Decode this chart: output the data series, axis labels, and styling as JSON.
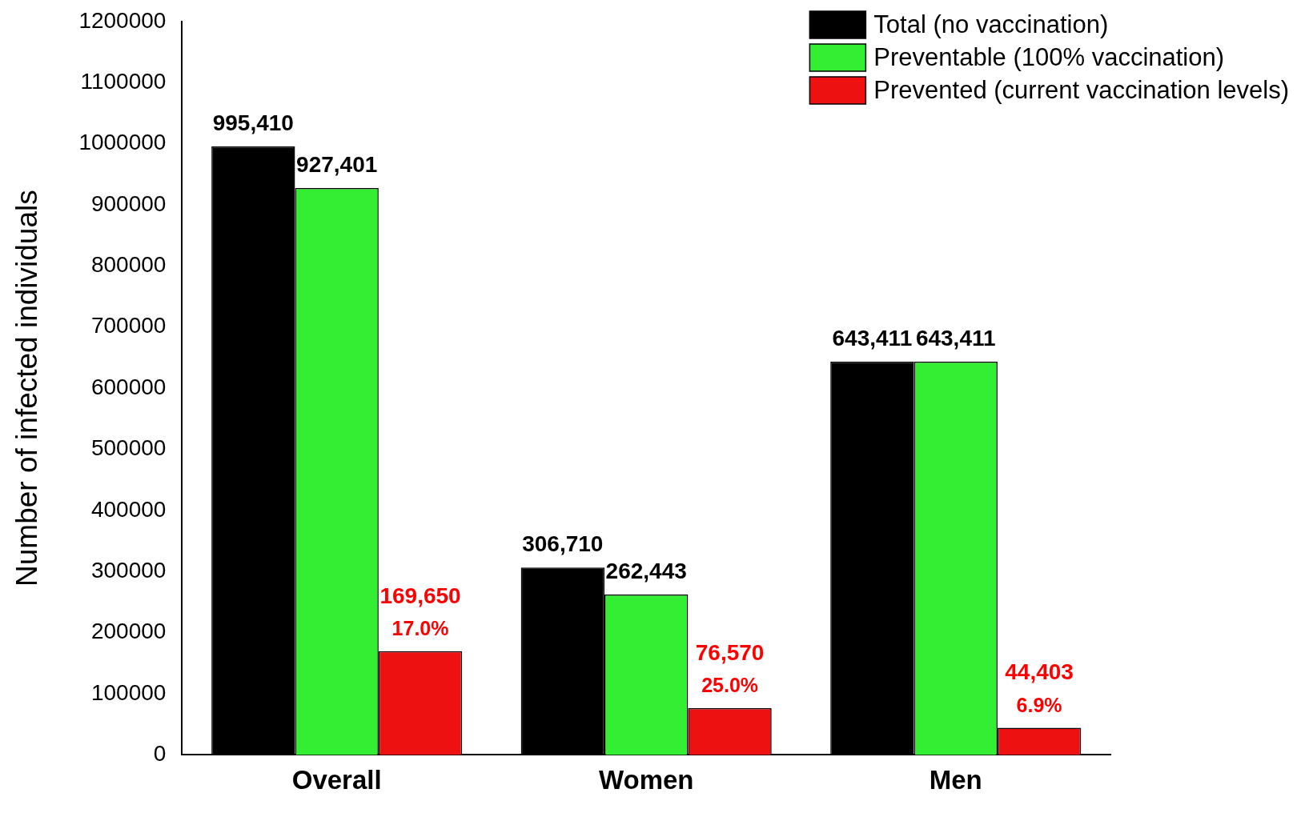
{
  "chart_data": {
    "type": "bar",
    "ylabel": "Number of infected individuals",
    "categories": [
      "Overall",
      "Women",
      "Men"
    ],
    "series": [
      {
        "name": "Total (no vaccination)",
        "color": "#000000",
        "values": [
          995410,
          306710,
          643411
        ],
        "value_labels": [
          "995,410",
          "306,710",
          "643,411"
        ]
      },
      {
        "name": "Preventable (100% vaccination)",
        "color": "#33ee33",
        "values": [
          927401,
          262443,
          643411
        ],
        "value_labels": [
          "927,401",
          "262,443",
          "643,411"
        ]
      },
      {
        "name": "Prevented (current vaccination levels)",
        "color": "#ee1111",
        "values": [
          169650,
          76570,
          44403
        ],
        "value_labels": [
          "169,650\n17.0%",
          "76,570\n25.0%",
          "44,403\n6.9%"
        ]
      }
    ],
    "ylim": [
      0,
      1200000
    ],
    "yticks": [
      0,
      100000,
      200000,
      300000,
      400000,
      500000,
      600000,
      700000,
      800000,
      900000,
      1000000,
      1100000,
      1200000
    ],
    "grid": false,
    "legend": "top right"
  }
}
